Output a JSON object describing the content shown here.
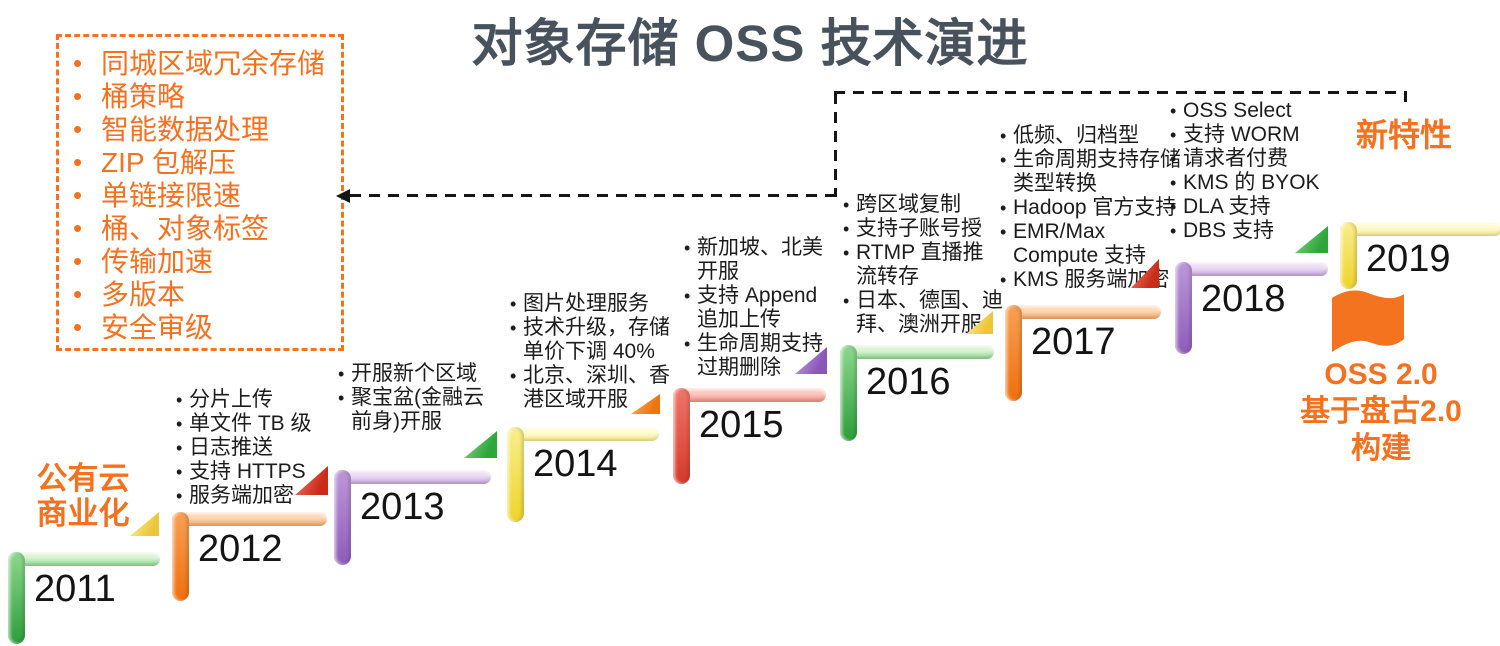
{
  "title": "对象存储 OSS 技术演进",
  "palette": {
    "accent_orange": "#f4711f",
    "title_color": "#48525d",
    "connector_color": "#151515",
    "year_color": "#141414",
    "brackets": {
      "green": {
        "h1": "#daf3d3",
        "h2": "#8ed88e",
        "v1": "#8ed88e",
        "v2": "#2d9c3a"
      },
      "orange": {
        "h1": "#fcd8b6",
        "h2": "#f8a766",
        "v1": "#f8a055",
        "v2": "#ef6f0d"
      },
      "purple": {
        "h1": "#ecdcf5",
        "h2": "#c7a7e1",
        "v1": "#bd97d9",
        "v2": "#8d5cb9"
      },
      "yellow": {
        "h1": "#fefbd0",
        "h2": "#f8ec8d",
        "v1": "#f9ee8d",
        "v2": "#eed32a"
      },
      "red": {
        "h1": "#fbc8c1",
        "h2": "#f28d82",
        "v1": "#f0766a",
        "v2": "#d43a28"
      }
    },
    "triangles": {
      "yellow": [
        "#fdf2a5",
        "#ecc63a"
      ],
      "red": [
        "#ef8273",
        "#c92c17"
      ],
      "green": [
        "#8ed88a",
        "#2fa63c"
      ],
      "orange": [
        "#f7b269",
        "#ec7512"
      ],
      "purple": [
        "#c6a3e2",
        "#8a57b8"
      ]
    }
  },
  "new_features_box": {
    "items": [
      "同城区域冗余存储",
      "桶策略",
      "智能数据处理",
      "ZIP 包解压",
      "单链接限速",
      "桶、对象标签",
      "传输加速",
      "多版本",
      "安全审级"
    ]
  },
  "labels": {
    "new_features": "新特性",
    "public_cloud": [
      "公有云",
      "商业化"
    ],
    "oss2": [
      "OSS 2.0",
      "基于盘古2.0",
      "构建"
    ]
  },
  "timeline": {
    "steps": [
      {
        "year": "2011",
        "color": "green",
        "items": []
      },
      {
        "year": "2012",
        "color": "orange",
        "items": [
          "分片上传",
          "单文件 TB 级",
          "日志推送",
          "支持 HTTPS",
          "服务端加密"
        ]
      },
      {
        "year": "2013",
        "color": "purple",
        "items": [
          "开服新个区域",
          "聚宝盆(金融云前身)开服"
        ]
      },
      {
        "year": "2014",
        "color": "yellow",
        "items": [
          "图片处理服务",
          "技术升级，存储单价下调 40%",
          "北京、深圳、香港区域开服"
        ]
      },
      {
        "year": "2015",
        "color": "red",
        "items": [
          "新加坡、北美开服",
          "支持 Append 追加上传",
          "生命周期支持过期删除"
        ]
      },
      {
        "year": "2016",
        "color": "green",
        "items": [
          "跨区域复制",
          "支持子账号授",
          "RTMP 直播推流转存",
          "日本、德国、迪拜、澳洲开服"
        ]
      },
      {
        "year": "2017",
        "color": "orange",
        "items": [
          "低频、归档型",
          "生命周期支持存储类型转换",
          "Hadoop 官方支持",
          "EMR/Max Compute 支持",
          "KMS 服务端加密"
        ]
      },
      {
        "year": "2018",
        "color": "purple",
        "items": [
          "OSS Select",
          "支持 WORM",
          "请求者付费",
          "KMS 的 BYOK",
          "DLA 支持",
          "DBS 支持"
        ]
      },
      {
        "year": "2019",
        "color": "yellow",
        "items": []
      }
    ],
    "markers": [
      {
        "color": "yellow"
      },
      {
        "color": "red"
      },
      {
        "color": "green"
      },
      {
        "color": "orange"
      },
      {
        "color": "purple"
      },
      {
        "color": "yellow"
      },
      {
        "color": "red"
      },
      {
        "color": "green"
      }
    ]
  }
}
